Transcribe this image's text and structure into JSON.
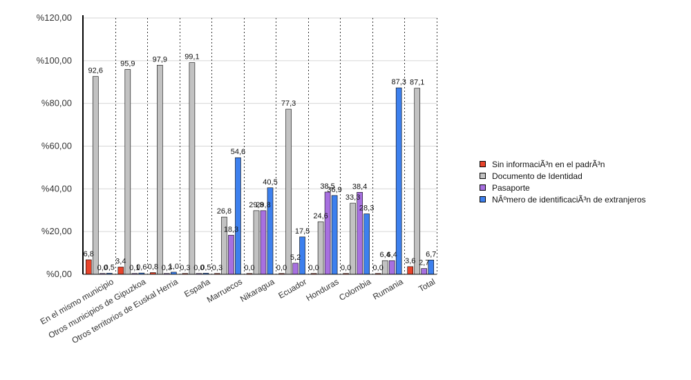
{
  "chart_data": {
    "type": "bar",
    "title": "",
    "xlabel": "",
    "ylabel": "",
    "ylim": [
      0,
      120
    ],
    "yticks": [
      "%0,00",
      "%20,00",
      "%40,00",
      "%60,00",
      "%80,00",
      "%100,00",
      "%120,00"
    ],
    "categories": [
      "En el mismo municipio",
      "Otros municipios de Gipuzkoa",
      "Otros territorios de Euskal Herria",
      "España",
      "Marruecos",
      "Nikaragua",
      "Ecuador",
      "Honduras",
      "Colombia",
      "Rumania",
      "Total"
    ],
    "legend_position": "right",
    "grid": "vertical-dotted",
    "series": [
      {
        "name": "Sin informaciÃ³n en el padrÃ³n",
        "color": "#e8432a",
        "values": [
          6.8,
          3.4,
          0.8,
          0.3,
          0.3,
          0.0,
          0.0,
          0.0,
          0.0,
          0.0,
          3.6
        ],
        "labels": [
          "6,8",
          "3,4",
          "0,8",
          "0,3",
          "0,3",
          "0,0",
          "0,0",
          "0,0",
          "0,0",
          "0,0",
          "3,6"
        ]
      },
      {
        "name": "Documento de Identidad",
        "color": "#c2c2c2",
        "values": [
          92.6,
          95.9,
          97.9,
          99.1,
          26.8,
          29.8,
          77.3,
          24.6,
          33.3,
          6.4,
          87.1
        ],
        "labels": [
          "92,6",
          "95,9",
          "97,9",
          "99,1",
          "26,8",
          "29,8",
          "77,3",
          "24,6",
          "33,3",
          "6,4",
          "87,1"
        ]
      },
      {
        "name": "Pasaporte",
        "color": "#a770e0",
        "values": [
          0.0,
          0.1,
          0.3,
          0.0,
          18.3,
          29.8,
          5.2,
          38.5,
          38.4,
          6.4,
          2.7
        ],
        "labels": [
          "0,0",
          "0,1",
          "0,3",
          "0,0",
          "18,3",
          "29,8",
          "5,2",
          "38,5",
          "38,4",
          "6,4",
          "2,7"
        ]
      },
      {
        "name": "NÂºmero de identificaciÃ³n de extranjeros",
        "color": "#3d80ee",
        "values": [
          0.5,
          0.6,
          1.0,
          0.5,
          54.6,
          40.5,
          17.5,
          36.9,
          28.3,
          87.3,
          6.7
        ],
        "labels": [
          "0,5",
          "0,6",
          "1,0",
          "0,5",
          "54,6",
          "40,5",
          "17,5",
          "36,9",
          "28,3",
          "87,3",
          "6,7"
        ]
      }
    ]
  }
}
